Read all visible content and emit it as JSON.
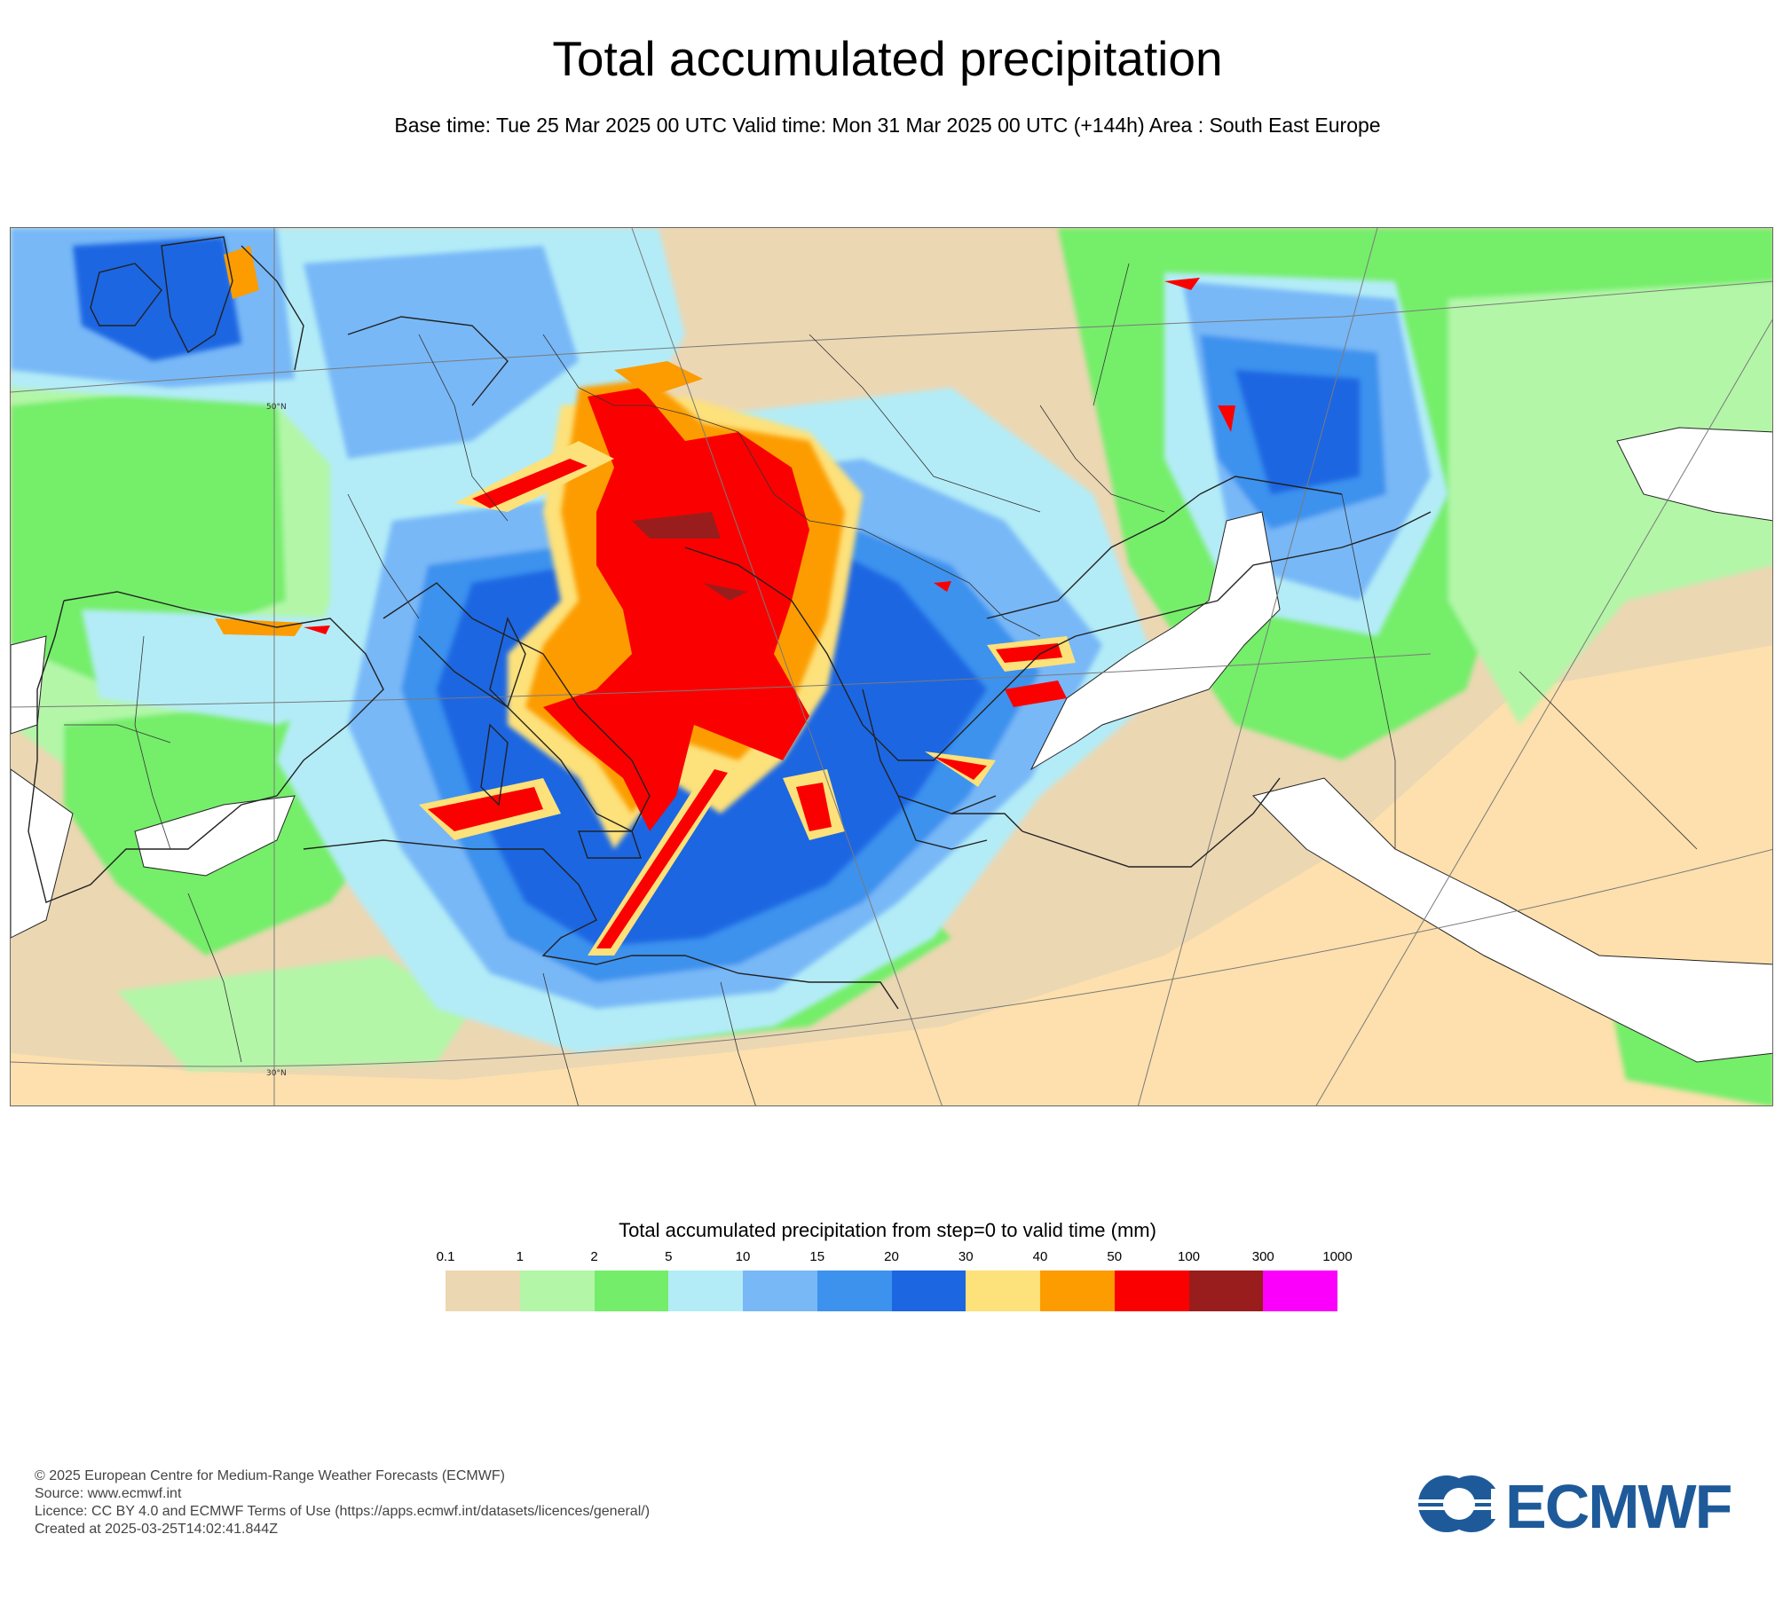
{
  "header": {
    "title": "Total accumulated precipitation",
    "subtitle": "Base time: Tue 25 Mar 2025 00 UTC Valid time: Mon 31 Mar 2025 00 UTC (+144h) Area : South East Europe"
  },
  "map": {
    "area": "South East Europe",
    "lat_labels": [
      "50°N",
      "30°N"
    ],
    "colors": {
      "land_dry": "#fde0ad",
      "sea_dry": "#ffffff",
      "coast": "#222222",
      "graticule": "#7a7a7a"
    }
  },
  "legend": {
    "title": "Total accumulated precipitation from step=0 to valid time (mm)",
    "ticks": [
      "0.1",
      "1",
      "2",
      "5",
      "10",
      "15",
      "20",
      "30",
      "40",
      "50",
      "100",
      "300",
      "1000"
    ],
    "colors": [
      "#ecd7b3",
      "#b3f6a8",
      "#74ee6a",
      "#b3ecf7",
      "#78b8f7",
      "#3d92ee",
      "#1c66e2",
      "#fde17a",
      "#fc9c00",
      "#fb0000",
      "#9a1d1d",
      "#fb00fb"
    ]
  },
  "footer": {
    "lines": [
      "© 2025 European Centre for Medium-Range Weather Forecasts (ECMWF)",
      "Source: www.ecmwf.int",
      "Licence: CC BY 4.0 and ECMWF Terms of Use (https://apps.ecmwf.int/datasets/licences/general/)",
      "Created at 2025-03-25T14:02:41.844Z"
    ]
  },
  "logo": {
    "text": "ECMWF",
    "color": "#1e5a9a"
  }
}
